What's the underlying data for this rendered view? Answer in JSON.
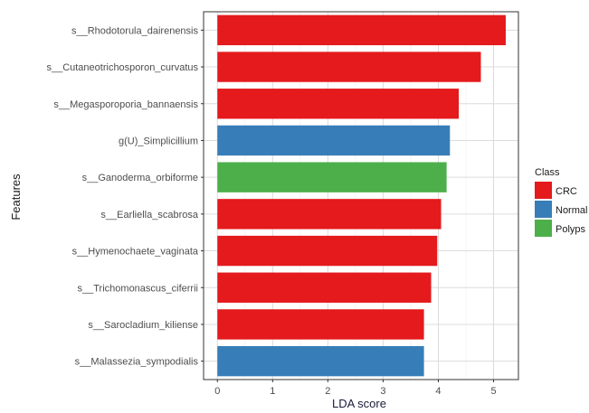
{
  "chart_data": {
    "type": "bar",
    "orientation": "horizontal",
    "xlabel": "LDA score",
    "ylabel": "Features",
    "xlim": [
      -0.25,
      5.45
    ],
    "xticks": [
      0,
      1,
      2,
      3,
      4,
      5
    ],
    "grid": true,
    "legend": {
      "title": "Class",
      "position": "right",
      "items": [
        {
          "label": "CRC",
          "color": "#E41A1C"
        },
        {
          "label": "Normal",
          "color": "#377EB8"
        },
        {
          "label": "Polyps",
          "color": "#4DAF4A"
        }
      ]
    },
    "bars": [
      {
        "feature": "s__Rhodotorula_dairenensis",
        "value": 5.22,
        "class": "CRC"
      },
      {
        "feature": "s__Cutaneotrichosporon_curvatus",
        "value": 4.77,
        "class": "CRC"
      },
      {
        "feature": "s__Megasporoporia_bannaensis",
        "value": 4.37,
        "class": "CRC"
      },
      {
        "feature": "g(U)_Simplicillium",
        "value": 4.21,
        "class": "Normal"
      },
      {
        "feature": "s__Ganoderma_orbiforme",
        "value": 4.15,
        "class": "Polyps"
      },
      {
        "feature": "s__Earliella_scabrosa",
        "value": 4.05,
        "class": "CRC"
      },
      {
        "feature": "s__Hymenochaete_vaginata",
        "value": 3.98,
        "class": "CRC"
      },
      {
        "feature": "s__Trichomonascus_ciferrii",
        "value": 3.87,
        "class": "CRC"
      },
      {
        "feature": "s__Sarocladium_kiliense",
        "value": 3.74,
        "class": "CRC"
      },
      {
        "feature": "s__Malassezia_sympodialis",
        "value": 3.74,
        "class": "Normal"
      }
    ]
  }
}
